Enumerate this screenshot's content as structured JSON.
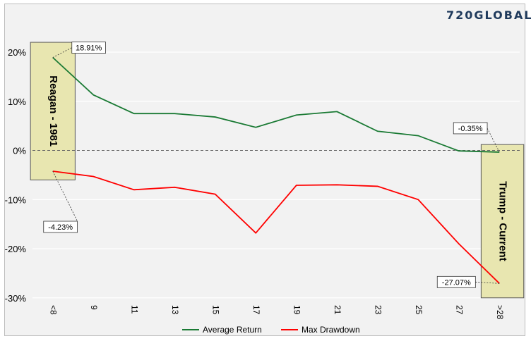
{
  "logo": {
    "text": "720GLOBAL",
    "color": "#1f3a5c",
    "accent": "#2e7d32"
  },
  "colors": {
    "avg_return": "#1a7a34",
    "max_drawdown": "#ff0000",
    "band_fill": "#e8e6b0",
    "band_stroke": "#555555",
    "zero_line": "#666666",
    "grid": "#ffffff"
  },
  "bands": [
    {
      "label": "Reagan - 1981",
      "x_start_index": -0.55,
      "x_end_index": 0.55,
      "y_top": 22,
      "y_bottom": -6
    },
    {
      "label": "Trump - Current",
      "x_start_index": 10.55,
      "x_end_index": 11.6,
      "y_top": 1.2,
      "y_bottom": -30
    }
  ],
  "callouts": [
    {
      "text": "18.91%",
      "series": 0,
      "index": 0
    },
    {
      "text": "-4.23%",
      "series": 1,
      "index": 0
    },
    {
      "text": "-0.35%",
      "series": 0,
      "index": 11
    },
    {
      "text": "-27.07%",
      "series": 1,
      "index": 11
    }
  ],
  "chart_data": {
    "type": "line",
    "categories": [
      "<8",
      "9",
      "11",
      "13",
      "15",
      "17",
      "19",
      "21",
      "23",
      "25",
      "27",
      ">28"
    ],
    "series": [
      {
        "name": "Average Return",
        "values": [
          18.91,
          11.3,
          7.5,
          7.5,
          6.8,
          4.7,
          7.2,
          7.9,
          3.9,
          3.0,
          -0.1,
          -0.35
        ]
      },
      {
        "name": "Max Drawdown",
        "values": [
          -4.23,
          -5.3,
          -8.0,
          -7.5,
          -8.9,
          -16.8,
          -7.1,
          -7.0,
          -7.3,
          -10.0,
          -19.0,
          -27.07
        ]
      }
    ],
    "y_ticks": [
      20,
      10,
      0,
      -10,
      -20,
      -30
    ],
    "y_tick_labels": [
      "20%",
      "10%",
      "0%",
      "-10%",
      "-20%",
      "-30%"
    ],
    "ylim": [
      -30,
      22
    ],
    "legend_position": "bottom",
    "grid": true,
    "title": "",
    "xlabel": "",
    "ylabel": ""
  }
}
